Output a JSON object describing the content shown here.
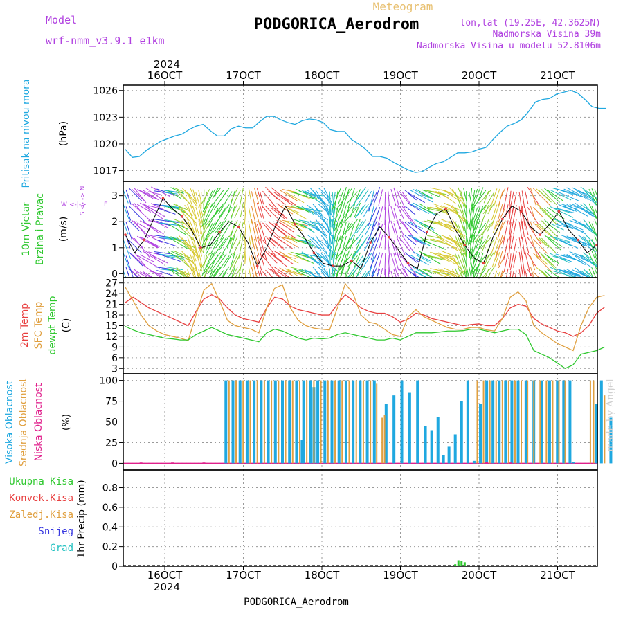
{
  "header": {
    "model_label": "Model",
    "model_value": "wrf-nmm_v3.9.1 e1km",
    "kind": "Meteogram",
    "station": "PODGORICA_Aerodrom",
    "coords": "lon,lat (19.25E, 42.3625N)",
    "elevation": "Nadmorska Visina 39m",
    "model_elevation": "Nadmorska Visina u modelu 52.8106m",
    "year_top": "2024",
    "year_bottom": "2024",
    "footer_station": "PODGORICA_Aerodrom",
    "watermark": "made by Angel"
  },
  "colors": {
    "purple": "#b040e0",
    "cyan": "#1fa8e0",
    "green": "#2ec82e",
    "red": "#e84040",
    "orange": "#e0a040",
    "magenta": "#e0208c",
    "snow": "#3838e0",
    "hail": "#20c0c0"
  },
  "chart_data": [
    {
      "type": "line",
      "panel": "pressure",
      "ylabel_main": "Pritisak na nivou mora",
      "ylabel_unit": "(hPa)",
      "x_tick_labels": [
        "16OCT",
        "17OCT",
        "18OCT",
        "19OCT",
        "20OCT",
        "21OCT"
      ],
      "yticks": [
        1017,
        1020,
        1023,
        1026
      ],
      "ylim": [
        1015.8,
        1026.6
      ],
      "x": [
        0,
        0.09,
        0.18,
        0.27,
        0.36,
        0.45,
        0.54,
        0.63,
        0.72,
        0.81,
        0.9,
        0.99,
        1.08,
        1.17,
        1.26,
        1.35,
        1.44,
        1.53,
        1.62,
        1.71,
        1.8,
        1.89,
        1.98,
        2.07,
        2.16,
        2.25,
        2.34,
        2.43,
        2.52,
        2.61,
        2.7,
        2.79,
        2.88,
        2.97,
        3.06,
        3.15,
        3.24,
        3.33,
        3.42,
        3.51,
        3.6,
        3.69,
        3.78,
        3.87,
        3.96,
        4.05,
        4.14,
        4.23,
        4.32,
        4.41,
        4.5,
        4.59,
        4.68,
        4.77,
        4.86,
        4.95,
        5.04,
        5.13,
        5.22,
        5.31,
        5.4,
        5.49,
        5.58,
        5.67,
        5.76,
        5.85,
        5.94,
        6.03,
        6.12
      ],
      "series": [
        {
          "values": [
            1019.4,
            1018.5,
            1018.6,
            1019.3,
            1019.8,
            1020.3,
            1020.6,
            1020.9,
            1021.1,
            1021.6,
            1022.0,
            1022.2,
            1021.5,
            1020.9,
            1020.9,
            1021.7,
            1022.0,
            1021.8,
            1021.8,
            1022.5,
            1023.1,
            1023.1,
            1022.7,
            1022.4,
            1022.2,
            1022.6,
            1022.8,
            1022.7,
            1022.4,
            1021.6,
            1021.4,
            1021.4,
            1020.5,
            1020.0,
            1019.4,
            1018.6,
            1018.6,
            1018.4,
            1017.9,
            1017.5,
            1017.1,
            1016.8,
            1016.9,
            1017.4,
            1017.8,
            1018.0,
            1018.5,
            1019.0,
            1019.0,
            1019.1,
            1019.4,
            1019.6,
            1020.5,
            1021.3,
            1022.0,
            1022.3,
            1022.7,
            1023.6,
            1024.7,
            1025.0,
            1025.1,
            1025.6,
            1025.8,
            1026.0,
            1025.7,
            1025.0,
            1024.2,
            1024.0,
            1024.0
          ],
          "color": "#1fa8e0"
        }
      ]
    },
    {
      "type": "line",
      "panel": "wind",
      "ylabel_main": "10m Vjetar",
      "ylabel_main2": "Brzina i Pravac",
      "ylabel_unit": "(m/s)",
      "compass": {
        "n": "N",
        "s": "S",
        "e": "E",
        "w": "W"
      },
      "yticks": [
        0,
        1,
        2,
        3
      ],
      "ylim": [
        -0.15,
        3.55
      ],
      "x": [
        0,
        0.12,
        0.24,
        0.36,
        0.48,
        0.6,
        0.72,
        0.84,
        0.96,
        1.08,
        1.2,
        1.32,
        1.44,
        1.56,
        1.68,
        1.8,
        1.92,
        2.04,
        2.16,
        2.28,
        2.4,
        2.52,
        2.64,
        2.76,
        2.88,
        3.0,
        3.12,
        3.24,
        3.36,
        3.48,
        3.6,
        3.72,
        3.84,
        3.96,
        4.08,
        4.2,
        4.32,
        4.44,
        4.56,
        4.68,
        4.8,
        4.92,
        5.04,
        5.16,
        5.28,
        5.4,
        5.52,
        5.64,
        5.76,
        5.88,
        6.0
      ],
      "series": [
        {
          "values": [
            1.5,
            0.8,
            1.3,
            2.1,
            2.9,
            2.5,
            2.2,
            1.7,
            1.0,
            1.1,
            1.6,
            2.0,
            1.8,
            1.2,
            0.3,
            1.0,
            1.9,
            2.6,
            1.9,
            1.4,
            0.8,
            0.4,
            0.3,
            0.3,
            0.5,
            0.2,
            1.2,
            1.8,
            1.4,
            0.9,
            0.4,
            0.2,
            1.6,
            2.3,
            2.5,
            1.7,
            1.1,
            0.6,
            0.4,
            1.4,
            2.1,
            2.6,
            2.4,
            1.8,
            1.5,
            1.9,
            2.4,
            1.7,
            1.3,
            0.8,
            1.1
          ],
          "color": "#e84040"
        }
      ]
    },
    {
      "type": "line",
      "panel": "temperature",
      "ylabel_series": [
        "2m Temp",
        "SFC Temp",
        "dewpt Temp"
      ],
      "ylabel_unit": "(C)",
      "yticks": [
        3,
        6,
        9,
        12,
        15,
        18,
        21,
        24,
        27
      ],
      "ylim": [
        1.5,
        28.5
      ],
      "x": [
        0,
        0.1,
        0.2,
        0.3,
        0.4,
        0.5,
        0.6,
        0.7,
        0.8,
        0.9,
        1.0,
        1.1,
        1.2,
        1.3,
        1.4,
        1.5,
        1.6,
        1.7,
        1.8,
        1.9,
        2.0,
        2.1,
        2.2,
        2.3,
        2.4,
        2.5,
        2.6,
        2.7,
        2.8,
        2.9,
        3.0,
        3.1,
        3.2,
        3.3,
        3.4,
        3.5,
        3.6,
        3.7,
        3.8,
        3.9,
        4.0,
        4.1,
        4.2,
        4.3,
        4.4,
        4.5,
        4.6,
        4.7,
        4.8,
        4.9,
        5.0,
        5.1,
        5.2,
        5.3,
        5.4,
        5.5,
        5.6,
        5.7,
        5.8,
        5.9,
        6.0,
        6.1
      ],
      "series": [
        {
          "name": "2m Temp",
          "color": "#e84040",
          "values": [
            21.5,
            23.0,
            21.5,
            20.0,
            19.0,
            18.0,
            17.0,
            16.0,
            15.0,
            19.0,
            22.5,
            23.7,
            22.5,
            20.0,
            18.0,
            17.0,
            16.5,
            16.0,
            20.0,
            23.0,
            22.5,
            20.5,
            19.5,
            19.0,
            18.5,
            18.0,
            18.0,
            21.0,
            23.7,
            22.0,
            20.0,
            19.0,
            18.5,
            18.5,
            17.5,
            16.0,
            16.8,
            18.5,
            18.0,
            17.0,
            16.5,
            16.0,
            15.5,
            15.0,
            15.3,
            15.5,
            15.0,
            15.0,
            17.0,
            20.0,
            21.0,
            20.5,
            17.0,
            15.5,
            14.5,
            13.5,
            13.0,
            12.0,
            13.0,
            15.0,
            18.5,
            20.2
          ]
        },
        {
          "name": "SFC Temp",
          "color": "#e0a040",
          "values": [
            25.8,
            22.0,
            18.0,
            15.0,
            13.5,
            12.5,
            12.0,
            11.5,
            10.8,
            18.0,
            25.0,
            26.8,
            22.0,
            16.5,
            15.0,
            14.5,
            14.0,
            13.0,
            20.0,
            25.5,
            26.5,
            20.0,
            16.5,
            15.0,
            14.3,
            14.0,
            13.8,
            20.0,
            26.8,
            24.0,
            18.0,
            16.0,
            15.5,
            14.0,
            12.5,
            12.0,
            17.5,
            19.5,
            17.5,
            16.5,
            15.5,
            14.5,
            14.0,
            14.0,
            14.5,
            14.5,
            13.8,
            13.5,
            17.0,
            23.0,
            24.5,
            22.0,
            15.0,
            13.0,
            11.5,
            10.0,
            9.0,
            8.0,
            15.0,
            20.0,
            23.0,
            23.5
          ]
        },
        {
          "name": "dewpt Temp",
          "color": "#2ec82e",
          "values": [
            14.8,
            13.8,
            13.0,
            12.5,
            12.0,
            11.5,
            11.3,
            11.0,
            11.0,
            12.5,
            13.5,
            14.5,
            13.5,
            12.5,
            12.0,
            11.5,
            11.0,
            10.5,
            13.0,
            14.0,
            13.5,
            12.5,
            11.5,
            11.0,
            11.5,
            11.3,
            11.5,
            12.5,
            13.0,
            12.5,
            12.0,
            11.5,
            11.0,
            11.0,
            11.5,
            11.0,
            12.0,
            13.0,
            13.0,
            13.0,
            13.2,
            13.5,
            13.5,
            13.6,
            14.0,
            14.0,
            13.5,
            13.0,
            13.5,
            14.0,
            14.0,
            12.5,
            8.0,
            7.0,
            6.0,
            4.5,
            3.0,
            4.0,
            7.0,
            7.5,
            8.0,
            9.0
          ]
        }
      ]
    },
    {
      "type": "bar",
      "panel": "cloud",
      "ylabel_series": [
        "Visoka Oblacnost",
        "Srednja Oblacnost",
        "Niska Oblacnost"
      ],
      "ylabel_unit": "(%)",
      "yticks": [
        0,
        25,
        50,
        75,
        100
      ],
      "ylim": [
        -8,
        108
      ],
      "series": [
        {
          "name": "Visoka Oblacnost",
          "color": "#1fa8e0",
          "bars": [
            [
              1.28,
              100
            ],
            [
              1.37,
              100
            ],
            [
              1.46,
              100
            ],
            [
              1.55,
              100
            ],
            [
              1.64,
              100
            ],
            [
              1.73,
              100
            ],
            [
              1.82,
              100
            ],
            [
              1.91,
              100
            ],
            [
              2.0,
              100
            ],
            [
              2.09,
              100
            ],
            [
              2.18,
              100
            ],
            [
              2.27,
              100
            ],
            [
              2.36,
              100
            ],
            [
              2.45,
              100
            ],
            [
              2.54,
              100
            ],
            [
              2.63,
              100
            ],
            [
              2.72,
              100
            ],
            [
              2.81,
              100
            ],
            [
              2.9,
              100
            ],
            [
              2.99,
              100
            ],
            [
              3.08,
              100
            ],
            [
              3.17,
              100
            ],
            [
              2.25,
              28
            ],
            [
              2.4,
              92
            ],
            [
              3.32,
              72
            ],
            [
              3.42,
              82
            ],
            [
              3.52,
              100
            ],
            [
              3.62,
              85
            ],
            [
              3.72,
              100
            ],
            [
              3.82,
              45
            ],
            [
              3.9,
              40
            ],
            [
              3.98,
              56
            ],
            [
              4.05,
              10
            ],
            [
              4.12,
              20
            ],
            [
              4.2,
              35
            ],
            [
              4.28,
              75
            ],
            [
              4.36,
              100
            ],
            [
              4.44,
              3
            ],
            [
              4.52,
              72
            ],
            [
              4.6,
              100
            ],
            [
              4.68,
              100
            ],
            [
              4.76,
              100
            ],
            [
              4.84,
              100
            ],
            [
              4.92,
              100
            ],
            [
              5.0,
              100
            ],
            [
              5.1,
              100
            ],
            [
              5.2,
              100
            ],
            [
              5.3,
              100
            ],
            [
              5.4,
              100
            ],
            [
              5.5,
              100
            ],
            [
              5.58,
              100
            ],
            [
              5.66,
              100
            ],
            [
              5.7,
              2
            ],
            [
              6.0,
              72
            ],
            [
              6.06,
              100
            ],
            [
              6.18,
              55
            ]
          ]
        },
        {
          "name": "Srednja Oblacnost",
          "color": "#e0a040",
          "bars": [
            [
              1.32,
              100
            ],
            [
              1.41,
              100
            ],
            [
              1.5,
              100
            ],
            [
              1.59,
              100
            ],
            [
              1.68,
              100
            ],
            [
              1.77,
              100
            ],
            [
              1.86,
              100
            ],
            [
              1.95,
              100
            ],
            [
              2.04,
              100
            ],
            [
              2.13,
              100
            ],
            [
              2.22,
              100
            ],
            [
              2.31,
              100
            ],
            [
              2.4,
              100
            ],
            [
              2.49,
              100
            ],
            [
              2.58,
              100
            ],
            [
              2.67,
              100
            ],
            [
              2.76,
              100
            ],
            [
              2.85,
              100
            ],
            [
              2.94,
              100
            ],
            [
              3.03,
              100
            ],
            [
              3.12,
              100
            ],
            [
              3.2,
              96
            ],
            [
              3.27,
              55
            ],
            [
              3.3,
              58
            ],
            [
              4.48,
              100
            ],
            [
              4.56,
              100
            ],
            [
              4.64,
              100
            ],
            [
              4.72,
              100
            ],
            [
              4.8,
              100
            ],
            [
              4.88,
              100
            ],
            [
              4.96,
              100
            ],
            [
              5.04,
              100
            ],
            [
              5.12,
              100
            ],
            [
              5.2,
              100
            ],
            [
              5.28,
              100
            ],
            [
              5.36,
              100
            ],
            [
              5.44,
              100
            ],
            [
              5.52,
              100
            ],
            [
              5.6,
              100
            ],
            [
              5.92,
              100
            ],
            [
              5.96,
              100
            ],
            [
              6.1,
              82
            ]
          ]
        },
        {
          "name": "Niska Oblacnost",
          "color": "#e0208c",
          "bars": [
            [
              0.2,
              1
            ],
            [
              0.6,
              1
            ],
            [
              1.0,
              1
            ],
            [
              4.6,
              2
            ],
            [
              4.9,
              1
            ]
          ]
        }
      ]
    },
    {
      "type": "bar",
      "panel": "precip",
      "legend": [
        "Ukupna Kisa",
        "Konvek.Kisa",
        "Zaledj.Kisa",
        "Snijeg",
        "Grad"
      ],
      "ylabel_unit": "1hr Precip (mm)",
      "x_tick_labels": [
        "16OCT",
        "17OCT",
        "18OCT",
        "19OCT",
        "20OCT",
        "21OCT"
      ],
      "yticks": [
        0,
        0.2,
        0.4,
        0.6,
        0.8
      ],
      "ylim": [
        0,
        0.98
      ],
      "series": [
        {
          "name": "Ukupna Kisa",
          "color": "#2ec82e",
          "bars": [
            [
              4.2,
              0.02
            ],
            [
              4.24,
              0.06
            ],
            [
              4.28,
              0.05
            ],
            [
              4.32,
              0.04
            ]
          ]
        }
      ]
    }
  ]
}
